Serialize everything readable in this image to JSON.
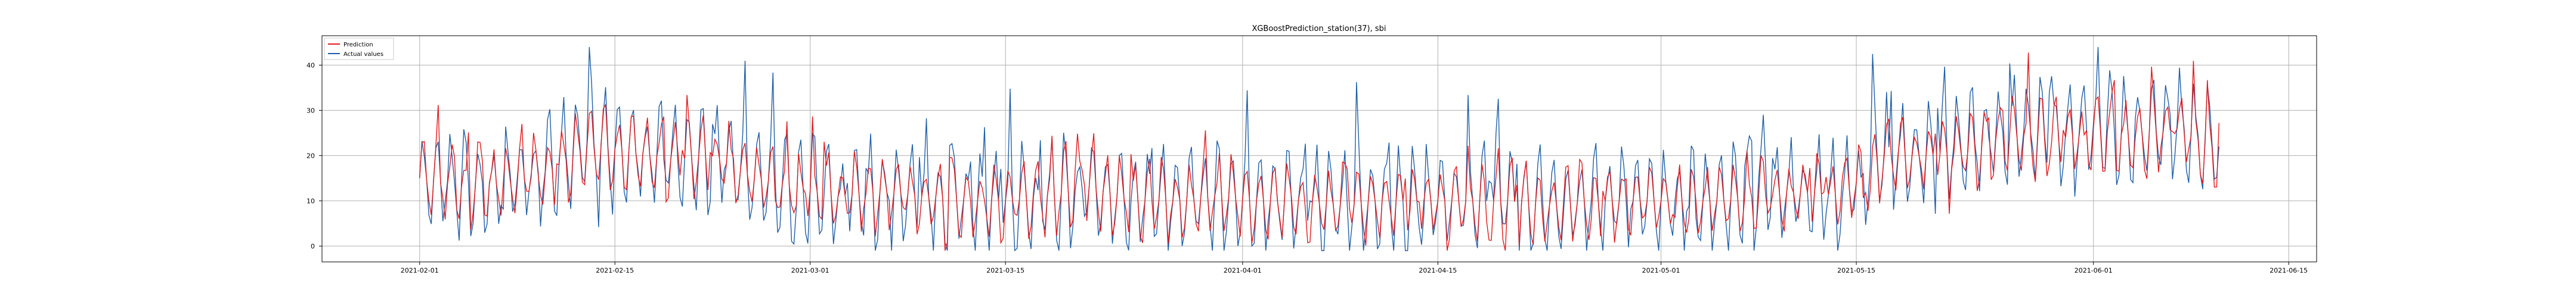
{
  "chart_data": {
    "type": "line",
    "title": "XGBoostPrediction_station(37), sbi",
    "xlabel": "",
    "ylabel": "",
    "x_range": [
      "2021-01-25",
      "2021-06-17"
    ],
    "ylim": [
      -3.5,
      46.5
    ],
    "x_tick_labels": [
      "2021-02-01",
      "2021-02-15",
      "2021-03-01",
      "2021-03-15",
      "2021-04-01",
      "2021-04-15",
      "2021-05-01",
      "2021-05-15",
      "2021-06-01",
      "2021-06-15"
    ],
    "y_tick_labels": [
      0,
      10,
      20,
      30,
      40
    ],
    "grid": true,
    "legend_position": "top-left",
    "series": [
      {
        "name": "Prediction",
        "color": "#e41a1c",
        "x": [
          "2021-02-01",
          "2021-02-04",
          "2021-02-07",
          "2021-02-10",
          "2021-02-13",
          "2021-02-16",
          "2021-02-19",
          "2021-02-22",
          "2021-02-25",
          "2021-02-28",
          "2021-03-03",
          "2021-03-06",
          "2021-03-09",
          "2021-03-12",
          "2021-03-15",
          "2021-03-18",
          "2021-03-21",
          "2021-03-24",
          "2021-03-27",
          "2021-03-30",
          "2021-04-02",
          "2021-04-05",
          "2021-04-08",
          "2021-04-11",
          "2021-04-14",
          "2021-04-17",
          "2021-04-20",
          "2021-04-23",
          "2021-04-26",
          "2021-04-29",
          "2021-05-02",
          "2021-05-05",
          "2021-05-08",
          "2021-05-11",
          "2021-05-14",
          "2021-05-17",
          "2021-05-20",
          "2021-05-23",
          "2021-05-26",
          "2021-05-29",
          "2021-06-01",
          "2021-06-04",
          "2021-06-07",
          "2021-06-10"
        ],
        "y": [
          15,
          13,
          14,
          16,
          22,
          21,
          19,
          20,
          15,
          13,
          11,
          12,
          11,
          10,
          10,
          11,
          13,
          10,
          10,
          11,
          10,
          10,
          9,
          10,
          10,
          10,
          10,
          9,
          10,
          10,
          10,
          10,
          11,
          12,
          11,
          20,
          20,
          21,
          25,
          23,
          26,
          24,
          26,
          21
        ]
      },
      {
        "name": "Actual values",
        "color": "#1f5fa8",
        "x": [
          "2021-02-01",
          "2021-02-04",
          "2021-02-07",
          "2021-02-10",
          "2021-02-13",
          "2021-02-16",
          "2021-02-19",
          "2021-02-22",
          "2021-02-25",
          "2021-02-28",
          "2021-03-03",
          "2021-03-06",
          "2021-03-09",
          "2021-03-12",
          "2021-03-15",
          "2021-03-18",
          "2021-03-21",
          "2021-03-24",
          "2021-03-27",
          "2021-03-30",
          "2021-04-02",
          "2021-04-05",
          "2021-04-08",
          "2021-04-11",
          "2021-04-14",
          "2021-04-17",
          "2021-04-20",
          "2021-04-23",
          "2021-04-26",
          "2021-04-29",
          "2021-05-02",
          "2021-05-05",
          "2021-05-08",
          "2021-05-11",
          "2021-05-14",
          "2021-05-17",
          "2021-05-20",
          "2021-05-23",
          "2021-05-26",
          "2021-05-29",
          "2021-06-01",
          "2021-06-04",
          "2021-06-07",
          "2021-06-10"
        ],
        "y": [
          15,
          14,
          14,
          17,
          23,
          21,
          19,
          20,
          15,
          13,
          11,
          12,
          11,
          10,
          10,
          11,
          13,
          10,
          10,
          11,
          10,
          10,
          9,
          10,
          10,
          10,
          10,
          9,
          10,
          10,
          10,
          10,
          11,
          12,
          11,
          21,
          20,
          22,
          26,
          24,
          27,
          24,
          27,
          22
        ]
      }
    ]
  }
}
